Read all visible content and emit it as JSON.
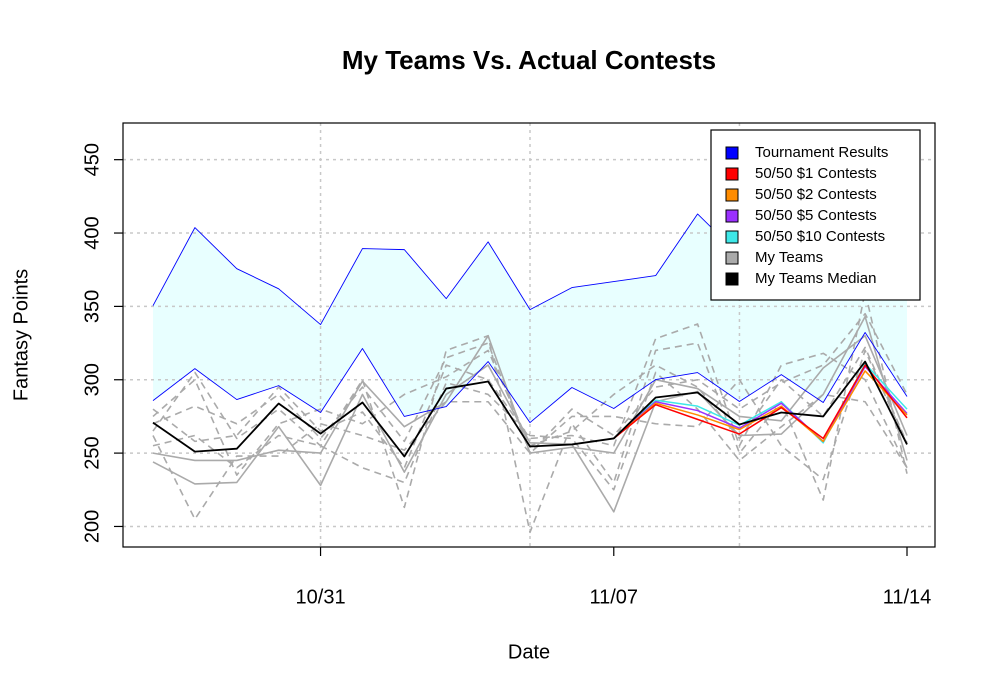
{
  "chart_data": {
    "type": "line",
    "title": "My Teams Vs. Actual Contests",
    "x_label": "Date",
    "y_label": "Fantasy Points",
    "categories": [
      null,
      null,
      null,
      null,
      "10/31",
      null,
      null,
      null,
      null,
      null,
      null,
      "11/07",
      null,
      null,
      null,
      null,
      null,
      null,
      "11/14"
    ],
    "ylim": [
      186,
      475
    ],
    "yticks": [
      200,
      250,
      300,
      350,
      400,
      450
    ],
    "grid": true,
    "xgrid": [
      4,
      9,
      14
    ],
    "legend": "top-right",
    "series": [
      {
        "name": "Tournament Results",
        "color": "#0000ff",
        "fill": "#e8ffff",
        "high": [
          350.5,
          403.7,
          375.7,
          362,
          337.6,
          389.4,
          388.7,
          355.3,
          394,
          347.8,
          362.8,
          366.9,
          371,
          413,
          385,
          395,
          375,
          390,
          390
        ],
        "low": [
          285.8,
          307.6,
          286.5,
          296,
          277.7,
          321.3,
          275,
          281.7,
          312.4,
          270.8,
          294.7,
          280.4,
          300.1,
          304.9,
          285.2,
          303.5,
          284.5,
          332.2,
          288.6
        ]
      },
      {
        "name": "50/50 $1 Contests",
        "color": "#ff0000",
        "values": [
          null,
          null,
          null,
          null,
          null,
          null,
          null,
          null,
          null,
          null,
          null,
          260,
          283,
          273,
          263,
          281,
          260,
          310,
          274
        ]
      },
      {
        "name": "50/50 $2 Contests",
        "color": "#ff8c00",
        "values": [
          null,
          null,
          null,
          null,
          null,
          null,
          null,
          null,
          null,
          null,
          null,
          260,
          284,
          276,
          266,
          282,
          258,
          306,
          276
        ]
      },
      {
        "name": "50/50 $5 Contests",
        "color": "#9b30ff",
        "values": [
          null,
          null,
          null,
          null,
          null,
          null,
          null,
          null,
          null,
          null,
          null,
          260,
          285,
          279,
          267,
          284,
          258,
          309,
          277
        ]
      },
      {
        "name": "50/50 $10 Contests",
        "color": "#3ee8e8",
        "values": [
          null,
          null,
          null,
          null,
          null,
          null,
          null,
          null,
          null,
          null,
          null,
          260,
          286,
          282,
          269,
          285,
          257,
          311,
          280
        ]
      },
      {
        "name": "My Teams",
        "color": "#aaaaaa",
        "lines": [
          [
            244,
            229,
            230,
            268,
            228,
            290,
            237,
            290,
            310,
            257,
            256,
            210,
            285,
            292,
            262,
            263,
            290,
            343,
            245
          ],
          [
            250,
            245,
            245,
            252,
            250,
            299,
            268,
            285,
            330,
            250,
            254,
            250,
            300,
            294,
            275,
            272,
            308,
            330,
            262
          ],
          [
            265,
            305,
            260,
            280,
            255,
            300,
            213,
            320,
            330,
            196,
            270,
            230,
            320,
            325,
            250,
            285,
            218,
            360,
            236
          ],
          [
            280,
            258,
            262,
            295,
            265,
            278,
            240,
            310,
            300,
            260,
            262,
            255,
            328,
            338,
            255,
            310,
            318,
            300,
            240
          ],
          [
            262,
            205,
            248,
            248,
            270,
            262,
            252,
            285,
            285,
            250,
            275,
            275,
            270,
            268,
            300,
            255,
            232,
            320,
            256
          ],
          [
            275,
            300,
            235,
            270,
            280,
            270,
            290,
            302,
            320,
            255,
            265,
            290,
            310,
            295,
            260,
            300,
            275,
            322,
            257
          ],
          [
            255,
            262,
            240,
            262,
            255,
            240,
            230,
            298,
            290,
            262,
            260,
            225,
            305,
            280,
            245,
            268,
            290,
            285,
            240
          ],
          [
            270,
            282,
            270,
            290,
            260,
            295,
            258,
            315,
            325,
            250,
            280,
            262,
            295,
            300,
            280,
            298,
            310,
            345,
            290
          ]
        ]
      },
      {
        "name": "My Teams Median",
        "color": "#000000",
        "values": [
          270.8,
          251,
          253,
          283.8,
          263.3,
          284.5,
          247.7,
          294,
          298.8,
          254.5,
          255.9,
          260,
          287.9,
          291.3,
          269.5,
          277.7,
          275,
          312.4,
          255.9
        ]
      }
    ]
  }
}
